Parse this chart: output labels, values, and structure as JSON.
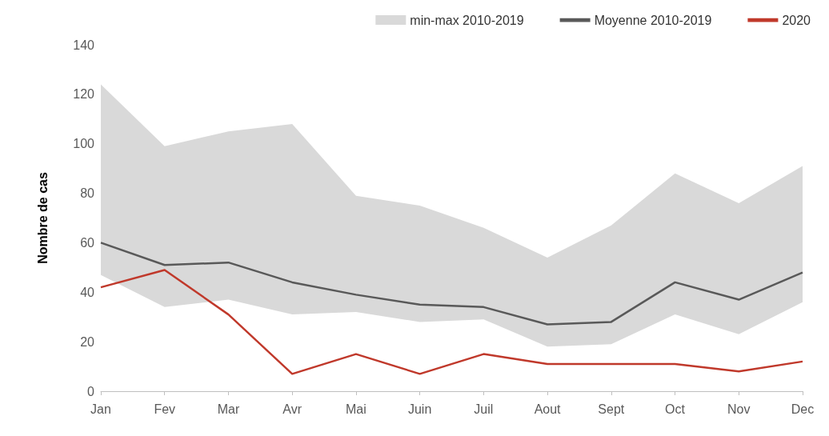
{
  "chart_data": {
    "type": "line",
    "ylabel": "Nombre de cas",
    "categories": [
      "Jan",
      "Fev",
      "Mar",
      "Avr",
      "Mai",
      "Juin",
      "Juil",
      "Aout",
      "Sept",
      "Oct",
      "Nov",
      "Dec"
    ],
    "series": [
      {
        "name": "min-max 2010-2019",
        "type": "area",
        "color": "#d9d9d9",
        "values": [
          null,
          null,
          null,
          null,
          null,
          null,
          null,
          null,
          null,
          null,
          null,
          null
        ],
        "lower": [
          47,
          34,
          37,
          31,
          32,
          28,
          29,
          18,
          19,
          31,
          23,
          36
        ],
        "upper": [
          124,
          99,
          105,
          108,
          79,
          75,
          66,
          54,
          67,
          88,
          76,
          91
        ]
      },
      {
        "name": "Moyenne 2010-2019",
        "color": "#595959",
        "values": [
          60,
          51,
          52,
          44,
          39,
          35,
          34,
          27,
          28,
          44,
          37,
          48
        ]
      },
      {
        "name": "2020",
        "color": "#c0392b",
        "values": [
          42,
          49,
          31,
          7,
          15,
          7,
          15,
          11,
          11,
          11,
          8,
          12
        ]
      }
    ],
    "ylim": [
      0,
      140
    ],
    "yticks": [
      0,
      20,
      40,
      60,
      80,
      100,
      120,
      140
    ],
    "grid": false,
    "legend": "top",
    "marker": "none",
    "line_style": "solid"
  }
}
